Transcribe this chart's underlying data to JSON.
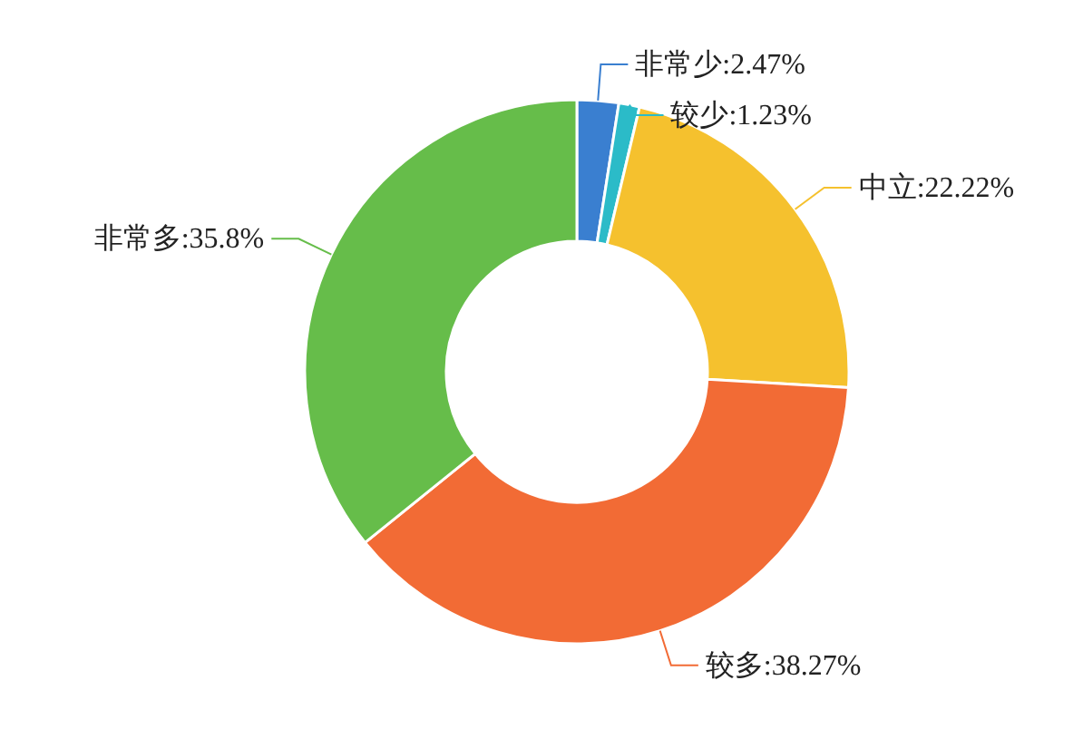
{
  "chart_data": {
    "type": "donut",
    "categories": [
      "非常少",
      "较少",
      "中立",
      "较多",
      "非常多"
    ],
    "values": [
      2.47,
      1.23,
      22.22,
      38.27,
      35.8
    ],
    "value_labels": [
      ":2.47%",
      ":1.23%",
      ":22.22%",
      ":38.27%",
      ":35.8%"
    ],
    "colors": [
      "#3a7fd0",
      "#2bbbc8",
      "#f5c12e",
      "#f26b35",
      "#66bd4a"
    ]
  }
}
